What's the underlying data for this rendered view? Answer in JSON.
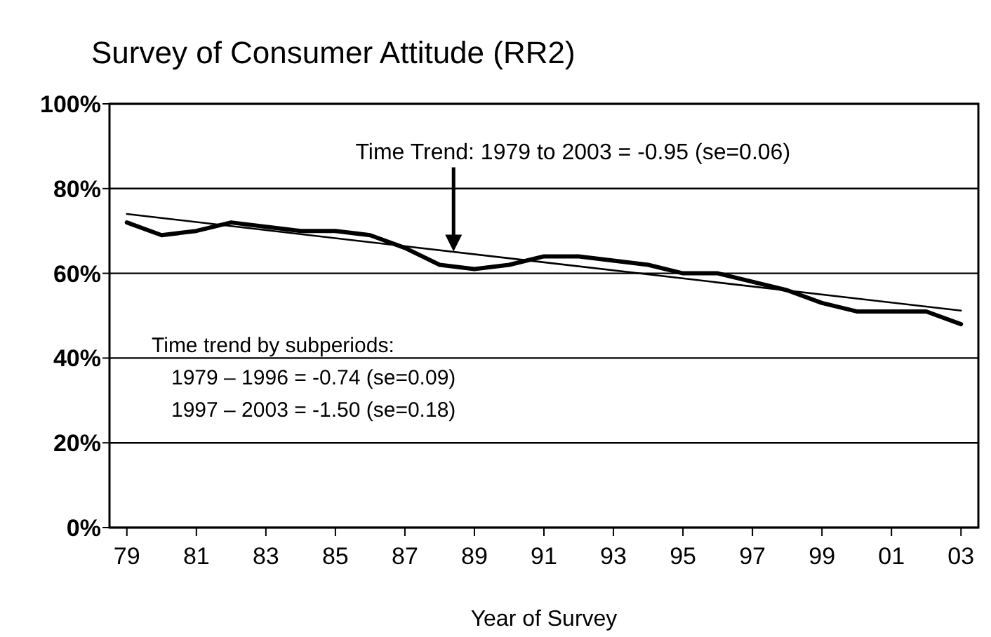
{
  "chart_data": {
    "type": "line",
    "title": "Survey of Consumer Attitude (RR2)",
    "xlabel": "Year of Survey",
    "x": [
      1979,
      1980,
      1981,
      1982,
      1983,
      1984,
      1985,
      1986,
      1987,
      1988,
      1989,
      1990,
      1991,
      1992,
      1993,
      1994,
      1995,
      1996,
      1997,
      1998,
      1999,
      2000,
      2001,
      2002,
      2003
    ],
    "series": [
      {
        "color": "#000000",
        "values": [
          72,
          69,
          70,
          72,
          71,
          70,
          70,
          69,
          66,
          62,
          61,
          62,
          64,
          64,
          63,
          62,
          60,
          60,
          58,
          56,
          53,
          51,
          51,
          51,
          48
        ]
      },
      {
        "type": "line",
        "color": "#000000",
        "x": [
          1979,
          2003
        ],
        "values": [
          74,
          51.2
        ]
      }
    ],
    "xlim": [
      1978.5,
      2003.5
    ],
    "xticks": [
      {
        "value": 1979,
        "label": "79"
      },
      {
        "value": 1981,
        "label": "81"
      },
      {
        "value": 1983,
        "label": "83"
      },
      {
        "value": 1985,
        "label": "85"
      },
      {
        "value": 1987,
        "label": "87"
      },
      {
        "value": 1989,
        "label": "89"
      },
      {
        "value": 1991,
        "label": "91"
      },
      {
        "value": 1993,
        "label": "93"
      },
      {
        "value": 1995,
        "label": "95"
      },
      {
        "value": 1997,
        "label": "97"
      },
      {
        "value": 1999,
        "label": "99"
      },
      {
        "value": 2001,
        "label": "01"
      },
      {
        "value": 2003,
        "label": "03"
      }
    ],
    "ylim": [
      0,
      100
    ],
    "yticks": [
      {
        "value": 0,
        "label": "0%"
      },
      {
        "value": 20,
        "label": "20%"
      },
      {
        "value": 40,
        "label": "40%"
      },
      {
        "value": 60,
        "label": "60%"
      },
      {
        "value": 80,
        "label": "80%"
      },
      {
        "value": 100,
        "label": "100%"
      }
    ],
    "grid": "y",
    "marker": "none",
    "line_style": "solid",
    "annotations": [
      "Time Trend:  1979 to 2003 = -0.95 (se=0.06)",
      "Time trend by subperiods:",
      "1979 – 1996 = -0.74 (se=0.09)",
      "1997 – 2003 = -1.50 (se=0.18)"
    ]
  }
}
